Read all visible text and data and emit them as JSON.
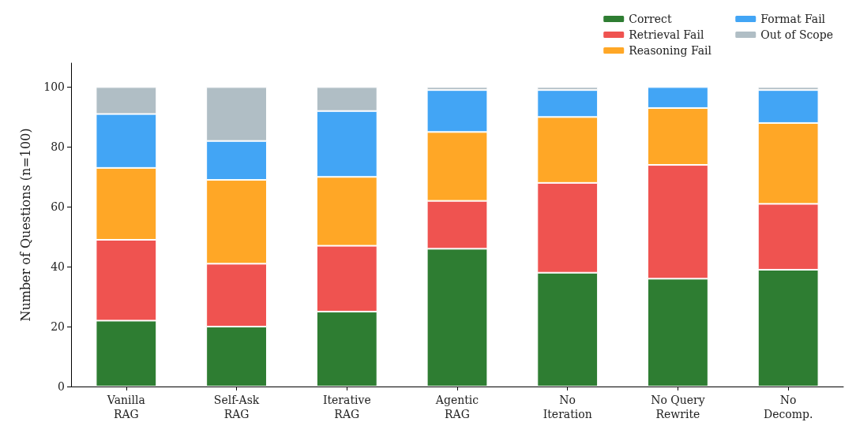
{
  "chart_data": {
    "type": "bar",
    "stacked": true,
    "ylabel": "Number of Questions (n=100)",
    "categories": [
      "Vanilla\nRAG",
      "Self-Ask\nRAG",
      "Iterative\nRAG",
      "Agentic\nRAG",
      "No\nIteration",
      "No Query\nRewrite",
      "No\nDecomp."
    ],
    "series": [
      {
        "name": "Correct",
        "color": "#2e7d32",
        "values": [
          22,
          20,
          25,
          46,
          38,
          36,
          39
        ]
      },
      {
        "name": "Retrieval Fail",
        "color": "#ef5350",
        "values": [
          27,
          21,
          22,
          16,
          30,
          38,
          22
        ]
      },
      {
        "name": "Reasoning Fail",
        "color": "#ffa726",
        "values": [
          24,
          28,
          23,
          23,
          22,
          19,
          27
        ]
      },
      {
        "name": "Format Fail",
        "color": "#42a5f5",
        "values": [
          18,
          13,
          22,
          14,
          9,
          7,
          11
        ]
      },
      {
        "name": "Out of Scope",
        "color": "#b0bec5",
        "values": [
          9,
          18,
          8,
          1,
          1,
          null,
          1
        ]
      }
    ],
    "ylim": [
      0,
      108
    ],
    "yticks": [
      0,
      20,
      40,
      60,
      80,
      100
    ],
    "grid": false,
    "legend": "top right"
  }
}
